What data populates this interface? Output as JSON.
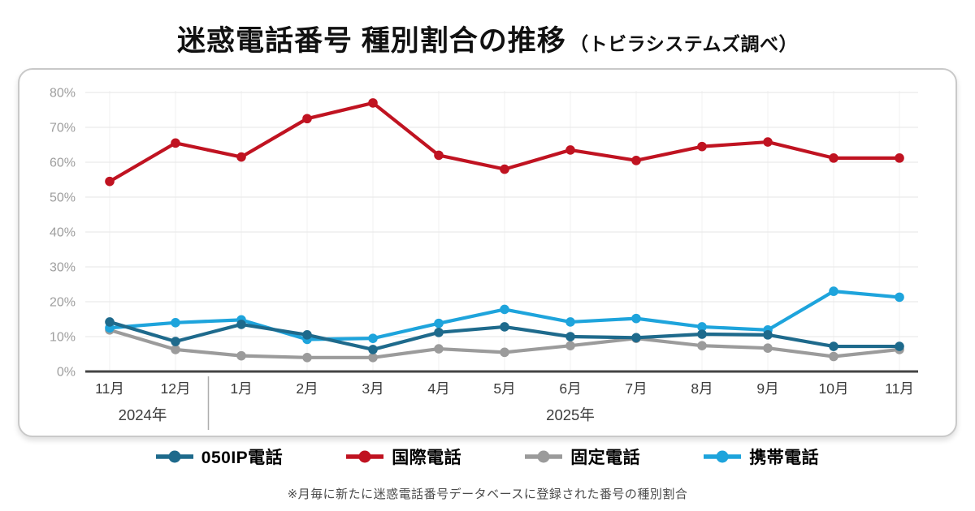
{
  "page": {
    "title_main": "迷惑電話番号 種別割合の推移",
    "title_sub": "（トビラシステムズ調べ）",
    "footnote": "※月毎に新たに迷惑電話番号データベースに登録された番号の種別割合"
  },
  "chart_data": {
    "type": "line",
    "title": "迷惑電話番号 種別割合の推移（トビラシステムズ調べ）",
    "x_labels": [
      "11月",
      "12月",
      "1月",
      "2月",
      "3月",
      "4月",
      "5月",
      "6月",
      "7月",
      "8月",
      "9月",
      "10月",
      "11月"
    ],
    "year_labels": [
      {
        "label": "2024年",
        "span": [
          0,
          1
        ]
      },
      {
        "label": "2025年",
        "span": [
          2,
          12
        ]
      }
    ],
    "y_ticks": [
      "0%",
      "10%",
      "20%",
      "30%",
      "40%",
      "50%",
      "60%",
      "70%",
      "80%"
    ],
    "ylim": [
      0,
      80
    ],
    "grid": true,
    "legend_position": "bottom",
    "series": [
      {
        "name": "050IP電話",
        "color": "#1e6a8c",
        "values": [
          14.2,
          8.6,
          13.5,
          10.5,
          6.3,
          11.2,
          12.8,
          10.0,
          9.7,
          10.7,
          10.5,
          7.2,
          7.2
        ]
      },
      {
        "name": "国際電話",
        "color": "#c01321",
        "values": [
          54.5,
          65.5,
          61.5,
          72.5,
          77.0,
          62.0,
          58.0,
          63.5,
          60.5,
          64.5,
          65.8,
          61.2,
          61.2
        ]
      },
      {
        "name": "固定電話",
        "color": "#9b9b9b",
        "values": [
          11.9,
          6.3,
          4.5,
          4.0,
          4.0,
          6.5,
          5.5,
          7.4,
          9.5,
          7.4,
          6.7,
          4.3,
          6.3
        ]
      },
      {
        "name": "携帯電話",
        "color": "#1ea4dc",
        "values": [
          12.5,
          14.0,
          14.8,
          9.2,
          9.5,
          13.8,
          17.8,
          14.2,
          15.2,
          12.8,
          11.9,
          23.0,
          21.3
        ]
      }
    ],
    "axis_colors": {
      "baseline": "#454545",
      "gridline": "#e9e9e9",
      "vertical_gridline": "#f2f2f2",
      "y_tick_text": "#9e9e9e",
      "x_tick_text": "#3c3c3c",
      "year_separator": "#adadad"
    }
  }
}
